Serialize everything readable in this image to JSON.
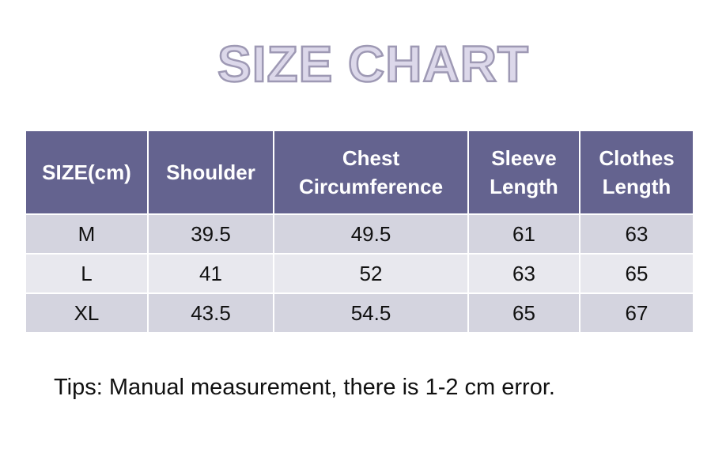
{
  "header": {
    "title": "SIZE CHART"
  },
  "table": {
    "columns": [
      "SIZE(cm)",
      "Shoulder",
      "Chest Circumference",
      "Sleeve Length",
      "Clothes Length"
    ],
    "rows": [
      [
        "M",
        39.5,
        49.5,
        61,
        63
      ],
      [
        "L",
        41,
        52,
        63,
        65
      ],
      [
        "XL",
        43.5,
        54.5,
        65,
        67
      ]
    ]
  },
  "footer": {
    "tips": "Tips: Manual measurement, there is 1-2 cm error."
  }
}
